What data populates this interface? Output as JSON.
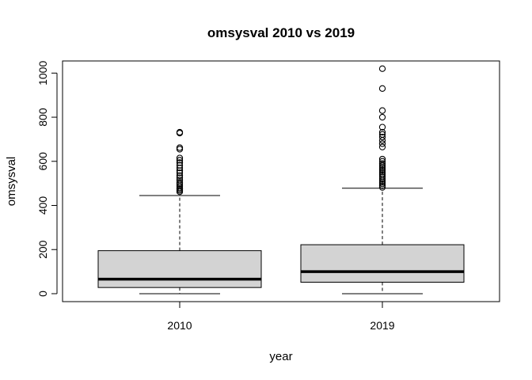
{
  "chart_data": {
    "type": "boxplot",
    "title": "omsysval 2010 vs 2019",
    "xlabel": "year",
    "ylabel": "omsysval",
    "categories": [
      "2010",
      "2019"
    ],
    "yticks": [
      0,
      200,
      400,
      600,
      800,
      1000
    ],
    "ylim": [
      -36,
      1055
    ],
    "grid": false,
    "legend": "none",
    "box_fill": "#d3d3d3",
    "boxes": [
      {
        "category": "2010",
        "whisker_low": 0,
        "q1": 28,
        "median": 66,
        "q3": 195,
        "whisker_high": 445,
        "outliers": [
          462,
          468,
          474,
          480,
          488,
          497,
          505,
          515,
          525,
          535,
          548,
          558,
          570,
          582,
          594,
          605,
          615,
          655,
          662,
          728,
          732
        ]
      },
      {
        "category": "2019",
        "whisker_low": 0,
        "q1": 52,
        "median": 100,
        "q3": 222,
        "whisker_high": 478,
        "outliers": [
          482,
          490,
          498,
          505,
          512,
          520,
          530,
          538,
          545,
          552,
          560,
          568,
          575,
          582,
          590,
          600,
          610,
          665,
          680,
          695,
          710,
          722,
          732,
          755,
          800,
          830,
          930,
          1020
        ]
      }
    ]
  }
}
